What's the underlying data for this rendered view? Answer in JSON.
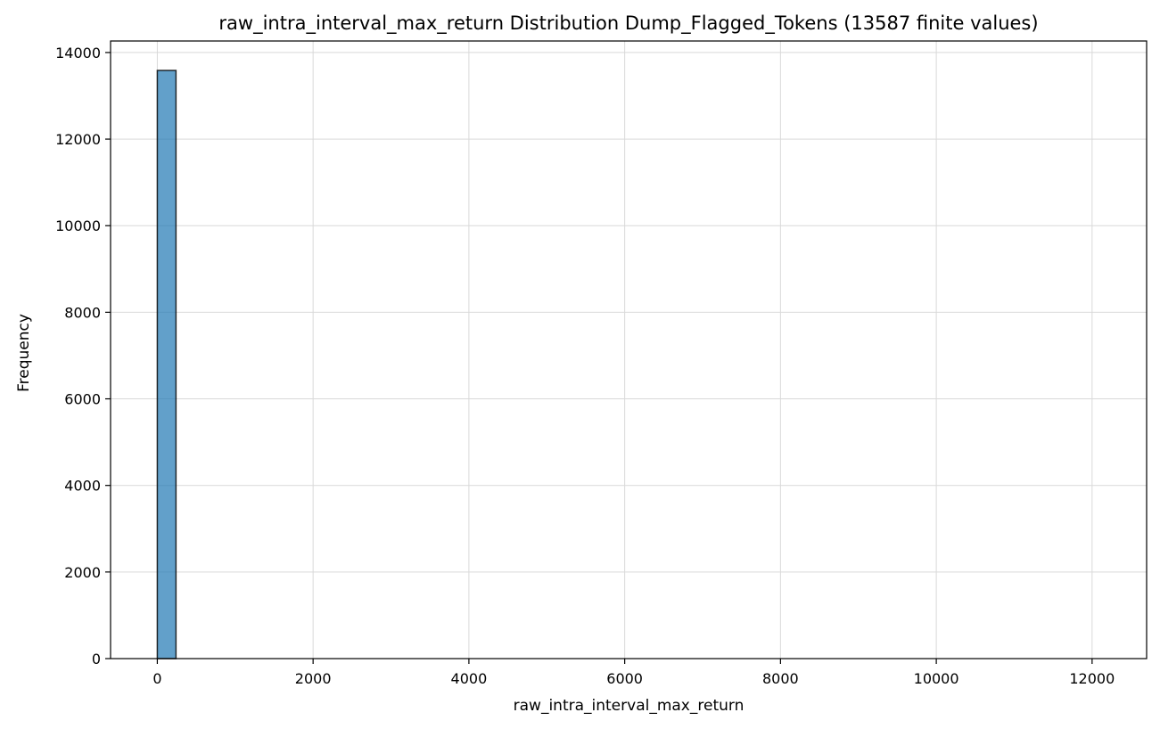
{
  "chart_data": {
    "type": "bar",
    "title": "raw_intra_interval_max_return Distribution Dump_Flagged_Tokens (13587 finite values)",
    "xlabel": "raw_intra_interval_max_return",
    "ylabel": "Frequency",
    "xlim": [
      -600,
      12700
    ],
    "ylim": [
      0,
      14266
    ],
    "xticks": [
      0,
      2000,
      4000,
      6000,
      8000,
      10000,
      12000
    ],
    "yticks": [
      0,
      2000,
      4000,
      6000,
      8000,
      10000,
      12000,
      14000
    ],
    "grid": true,
    "bars": [
      {
        "x0": 0,
        "x1": 240,
        "value": 13586
      }
    ],
    "colors": {
      "bar_fill": "#1f77b4",
      "bar_opacity": 0.7,
      "bar_edge": "#000000",
      "grid": "#d9d9d9",
      "axes": "#000000"
    }
  }
}
